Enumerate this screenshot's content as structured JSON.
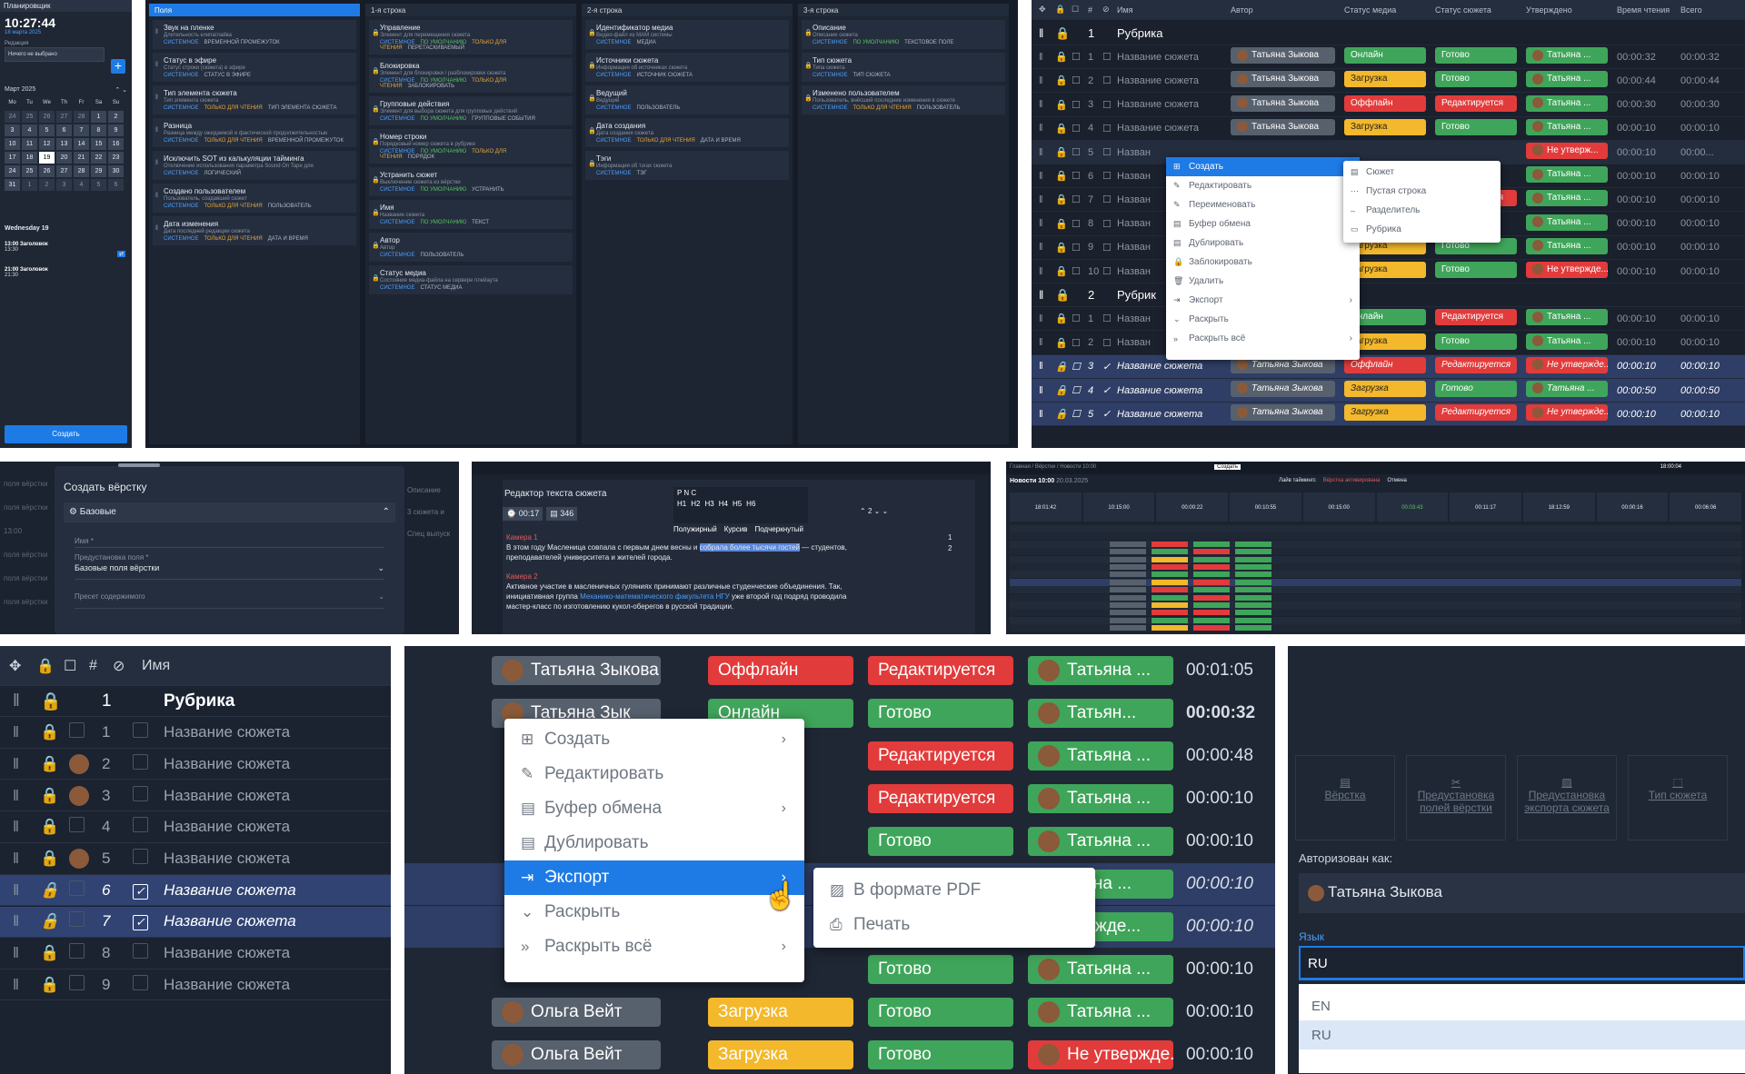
{
  "planner": {
    "title": "Планировщик",
    "time": "10:27:44",
    "date": "18 марта 2025",
    "edition_label": "Редакция",
    "edition_value": "Ничего не выбрано",
    "month": "Март 2025",
    "weekdays": [
      "Mo",
      "Tu",
      "We",
      "Th",
      "Fr",
      "Sa",
      "Su"
    ],
    "days": [
      "24",
      "25",
      "26",
      "27",
      "28",
      "1",
      "2",
      "3",
      "4",
      "5",
      "6",
      "7",
      "8",
      "9",
      "10",
      "11",
      "12",
      "13",
      "14",
      "15",
      "16",
      "17",
      "18",
      "19",
      "20",
      "21",
      "22",
      "23",
      "24",
      "25",
      "26",
      "27",
      "28",
      "29",
      "30",
      "31",
      "1",
      "2",
      "3",
      "4",
      "5",
      "6"
    ],
    "day_header": "Wednesday 19",
    "events": [
      {
        "time": "13:00",
        "title": "Заголовок",
        "sub": "13:30"
      },
      {
        "time": "21:00",
        "title": "Заголовок",
        "sub": "21:30"
      }
    ],
    "create": "Создать"
  },
  "fields": {
    "columns": [
      {
        "title": "Поля",
        "cards": [
          {
            "t": "Звук на пленке",
            "d": "Длительность клипа/лайва",
            "b": [
              "СИСТЕМНОЕ",
              "ВРЕМЕННОЙ ПРОМЕЖУТОК"
            ]
          },
          {
            "t": "Статус в эфире",
            "d": "Статус строки (сюжета) в эфире",
            "b": [
              "СИСТЕМНОЕ",
              "СТАТУС В ЭФИРЕ"
            ]
          },
          {
            "t": "Тип элемента сюжета",
            "d": "Тип элемента сюжета",
            "b": [
              "СИСТЕМНОЕ",
              "ТОЛЬКО ДЛЯ ЧТЕНИЯ",
              "ТИП ЭЛЕМЕНТА СЮЖЕТА"
            ]
          },
          {
            "t": "Разница",
            "d": "Разница между ожидаемой и фактической продолжительностью",
            "b": [
              "СИСТЕМНОЕ",
              "ТОЛЬКО ДЛЯ ЧТЕНИЯ",
              "ВРЕМЕННОЙ ПРОМЕЖУТОК"
            ]
          },
          {
            "t": "Исключить SOT из калькуляции тайминга",
            "d": "Отключение использования параметра Sound On Tape для",
            "b": [
              "СИСТЕМНОЕ",
              "ЛОГИЧЕСКИЙ"
            ]
          },
          {
            "t": "Создано пользователем",
            "d": "Пользователь, создавший сюжет",
            "b": [
              "СИСТЕМНОЕ",
              "ТОЛЬКО ДЛЯ ЧТЕНИЯ",
              "ПОЛЬЗОВАТЕЛЬ"
            ]
          },
          {
            "t": "Дата изменения",
            "d": "Дата последней редакции сюжета",
            "b": [
              "СИСТЕМНОЕ",
              "ТОЛЬКО ДЛЯ ЧТЕНИЯ",
              "ДАТА И ВРЕМЯ"
            ]
          }
        ]
      },
      {
        "title": "1-я строка",
        "cards": [
          {
            "t": "Управление",
            "d": "Элемент для перемещения сюжета",
            "b": [
              "СИСТЕМНОЕ",
              "ПО УМОЛЧАНИЮ",
              "ТОЛЬКО ДЛЯ ЧТЕНИЯ",
              "ПЕРЕТАСКИВАЕМЫЙ"
            ]
          },
          {
            "t": "Блокировка",
            "d": "Элемент для блокировки / разблокировки сюжета",
            "b": [
              "СИСТЕМНОЕ",
              "ПО УМОЛЧАНИЮ",
              "ТОЛЬКО ДЛЯ ЧТЕНИЯ",
              "ЗАБЛОКИРОВАТЬ"
            ]
          },
          {
            "t": "Групповые действия",
            "d": "Элемент для выбора сюжета для групповых действий",
            "b": [
              "СИСТЕМНОЕ",
              "ПО УМОЛЧАНИЮ",
              "ГРУППОВЫЕ СОБЫТИЯ"
            ]
          },
          {
            "t": "Номер строки",
            "d": "Порядковый номер сюжета в рубрике",
            "b": [
              "СИСТЕМНОЕ",
              "ПО УМОЛЧАНИЮ",
              "ТОЛЬКО ДЛЯ ЧТЕНИЯ",
              "ПОРЯДОК"
            ]
          },
          {
            "t": "Устранить сюжет",
            "d": "Выключение сюжета из вёрстки",
            "b": [
              "СИСТЕМНОЕ",
              "ПО УМОЛЧАНИЮ",
              "УСТРАНИТЬ"
            ]
          },
          {
            "t": "Имя",
            "d": "Название сюжета",
            "b": [
              "СИСТЕМНОЕ",
              "ПО УМОЛЧАНИЮ",
              "ТЕКСТ"
            ]
          },
          {
            "t": "Автор",
            "d": "Автор",
            "b": [
              "СИСТЕМНОЕ",
              "ПОЛЬЗОВАТЕЛЬ"
            ]
          },
          {
            "t": "Статус медиа",
            "d": "Состояние медиа-файла на сервере плейаута",
            "b": [
              "СИСТЕМНОЕ",
              "СТАТУС МЕДИА"
            ]
          }
        ]
      },
      {
        "title": "2-я строка",
        "cards": [
          {
            "t": "Идентификатор медиа",
            "d": "Видео-файл из МАМ системы",
            "b": [
              "СИСТЕМНОЕ",
              "МЕДИА"
            ]
          },
          {
            "t": "Источники сюжета",
            "d": "Информация об источниках сюжета",
            "b": [
              "СИСТЕМНОЕ",
              "ИСТОЧНИК СЮЖЕТА"
            ]
          },
          {
            "t": "Ведущий",
            "d": "Ведущий",
            "b": [
              "СИСТЕМНОЕ",
              "ПОЛЬЗОВАТЕЛЬ"
            ]
          },
          {
            "t": "Дата создания",
            "d": "Дата создания сюжета",
            "b": [
              "СИСТЕМНОЕ",
              "ТОЛЬКО ДЛЯ ЧТЕНИЯ",
              "ДАТА И ВРЕМЯ"
            ]
          },
          {
            "t": "Тэги",
            "d": "Информация об тэгах сюжета",
            "b": [
              "СИСТЕМНОЕ",
              "ТЭГ"
            ]
          }
        ]
      },
      {
        "title": "3-я строка",
        "cards": [
          {
            "t": "Описание",
            "d": "Описание сюжета",
            "b": [
              "СИСТЕМНОЕ",
              "ПО УМОЛЧАНИЮ",
              "ТЕКСТОВОЕ ПОЛЕ"
            ]
          },
          {
            "t": "Тип сюжета",
            "d": "Типа сюжета",
            "b": [
              "СИСТЕМНОЕ",
              "ТИП СЮЖЕТА"
            ]
          },
          {
            "t": "Изменено пользователем",
            "d": "Пользователь, внёсший последние изменения в сюжете",
            "b": [
              "СИСТЕМНОЕ",
              "ТОЛЬКО ДЛЯ ЧТЕНИЯ",
              "ПОЛЬЗОВАТЕЛЬ"
            ]
          }
        ]
      }
    ]
  },
  "rundown": {
    "headers": [
      "#",
      "Имя",
      "Автор",
      "Статус медиа",
      "Статус сюжета",
      "Утверждено",
      "Время чтения",
      "Всего"
    ],
    "rows": [
      {
        "n": "1",
        "name": "Рубрика",
        "type": "rubric"
      },
      {
        "n": "1",
        "name": "Название сюжета",
        "author": "Татьяна Зыкова",
        "media": "Онлайн",
        "mc": "g",
        "status": "Готово",
        "sc": "g",
        "appr": "Татьяна ...",
        "ac": "g",
        "time": "00:00:32",
        "total": "00:00:32"
      },
      {
        "n": "2",
        "name": "Название сюжета",
        "author": "Татьяна Зыкова",
        "media": "Загрузка",
        "mc": "y",
        "status": "Готово",
        "sc": "g",
        "appr": "Татьяна ...",
        "ac": "g",
        "time": "00:00:44",
        "total": "00:00:44"
      },
      {
        "n": "3",
        "name": "Название сюжета",
        "author": "Татьяна Зыкова",
        "media": "Оффлайн",
        "mc": "r",
        "status": "Редактируется",
        "sc": "r",
        "appr": "Татьяна ...",
        "ac": "g",
        "time": "00:00:30",
        "total": "00:00:30"
      },
      {
        "n": "4",
        "name": "Название сюжета",
        "author": "Татьяна Зыкова",
        "media": "Загрузка",
        "mc": "y",
        "status": "Готово",
        "sc": "g",
        "appr": "Татьяна ...",
        "ac": "g",
        "time": "00:00:10",
        "total": "00:00:10"
      },
      {
        "n": "5",
        "name": "Назван",
        "appr": "Не утверж...",
        "ac": "r",
        "time": "00:00:10",
        "total": "00:00...",
        "type": "active"
      },
      {
        "n": "6",
        "name": "Назван",
        "appr": "Татьяна ...",
        "ac": "g",
        "time": "00:00:10",
        "total": "00:00:10"
      },
      {
        "n": "7",
        "name": "Назван",
        "status": "Редактируется",
        "sc": "r",
        "appr": "Татьяна ...",
        "ac": "g",
        "time": "00:00:10",
        "total": "00:00:10"
      },
      {
        "n": "8",
        "name": "Назван",
        "appr": "Татьяна ...",
        "ac": "g",
        "time": "00:00:10",
        "total": "00:00:10"
      },
      {
        "n": "9",
        "name": "Назван",
        "media": "Загрузка",
        "mc": "y",
        "status": "Готово",
        "sc": "g",
        "appr": "Татьяна ...",
        "ac": "g",
        "time": "00:00:10",
        "total": "00:00:10"
      },
      {
        "n": "10",
        "name": "Назван",
        "media": "Загрузка",
        "mc": "y",
        "status": "Готово",
        "sc": "g",
        "appr": "Не утвержде...",
        "ac": "r",
        "time": "00:00:10",
        "total": "00:00:10"
      },
      {
        "n": "2",
        "name": "Рубрик",
        "type": "rubric"
      },
      {
        "n": "1",
        "name": "Назван",
        "media": "Онлайн",
        "mc": "g",
        "status": "Редактируется",
        "sc": "r",
        "appr": "Татьяна ...",
        "ac": "g",
        "time": "00:00:10",
        "total": "00:00:10"
      },
      {
        "n": "2",
        "name": "Назван",
        "media": "Загрузка",
        "mc": "y",
        "status": "Готово",
        "sc": "g",
        "appr": "Татьяна ...",
        "ac": "g",
        "time": "00:00:10",
        "total": "00:00:10"
      },
      {
        "n": "3",
        "name": "Название сюжета",
        "author": "Татьяна Зыкова",
        "media": "Оффлайн",
        "mc": "r",
        "status": "Редактируется",
        "sc": "r",
        "appr": "Не утвержде...",
        "ac": "r",
        "time": "00:00:10",
        "total": "00:00:10",
        "type": "sel"
      },
      {
        "n": "4",
        "name": "Название сюжета",
        "author": "Татьяна Зыкова",
        "media": "Загрузка",
        "mc": "y",
        "status": "Готово",
        "sc": "g",
        "appr": "Татьяна ...",
        "ac": "g",
        "time": "00:00:50",
        "total": "00:00:50",
        "type": "sel"
      },
      {
        "n": "5",
        "name": "Название сюжета",
        "author": "Татьяна Зыкова",
        "media": "Загрузка",
        "mc": "y",
        "status": "Редактируется",
        "sc": "r",
        "appr": "Не утвержде...",
        "ac": "r",
        "time": "00:00:10",
        "total": "00:00:10",
        "type": "sel"
      }
    ],
    "menu": [
      "Создать",
      "Редактировать",
      "Переименовать",
      "Буфер обмена",
      "Дублировать",
      "Заблокировать",
      "Удалить",
      "Экспорт",
      "Раскрыть",
      "Раскрыть всё"
    ],
    "submenu": [
      "Сюжет",
      "Пустая строка",
      "Разделитель",
      "Рубрика"
    ]
  },
  "layout_dialog": {
    "title": "Создать вёрстку",
    "section": "Базовые",
    "name_label": "Имя *",
    "preset_label": "Предустановка поля *",
    "preset_value": "Базовые поля вёрстки",
    "content_label": "Пресет содержимого",
    "side": [
      "Описание",
      "3 сюжета и",
      "Спец выпуск"
    ]
  },
  "text_editor": {
    "title": "Редактор текста сюжета",
    "time": "00:17",
    "words": "346",
    "heads": [
      "H1",
      "H2",
      "H3",
      "H4",
      "H5",
      "H6"
    ],
    "styles": [
      "Полужирный",
      "Курсив",
      "Подчеркнутый"
    ],
    "page": "2",
    "cam1": "Камера 1",
    "p1a": "В этом году Масленица совпала с первым днем весны и ",
    "p1h": "собрала более тысячи гостей",
    "p1b": " — студентов, преподавателей университета и жителей города.",
    "cam2": "Камера 2",
    "p2a": "Активное участие в масленичных гуляниях принимают различные студенческие объединения. Так, инициативная группа ",
    "p2l": "Механико-математического факультета НГУ",
    "p2b": " уже второй год подряд проводила мастер-класс по изготовлению кукол-оберегов в русской традиции."
  },
  "overview": {
    "crumb": "Главная / Вёрстки / Новости 10:00",
    "title": "Новости 10:00",
    "date": "20.03.2025",
    "create": "Создать",
    "live": "Лайв таймингс",
    "status": "Вёрстка активирована",
    "cancel": "Отмена",
    "clock": "18:00:04",
    "times": [
      "18:01:42",
      "10:15:00",
      "00:00:22",
      "00:10:55",
      "00:15:00",
      "00:03:43",
      "00:11:17",
      "18:12:59",
      "00:00:16",
      "00:06:06"
    ]
  },
  "big_table": {
    "headers": [
      "#",
      "Имя"
    ],
    "rows": [
      {
        "n": "1",
        "name": "Рубрика",
        "type": "rubric"
      },
      {
        "n": "1",
        "name": "Название сюжета"
      },
      {
        "n": "2",
        "name": "Название сюжета",
        "ava": true
      },
      {
        "n": "3",
        "name": "Название сюжета",
        "ava": true
      },
      {
        "n": "4",
        "name": "Название сюжета"
      },
      {
        "n": "5",
        "name": "Название сюжета",
        "ava": true
      },
      {
        "n": "6",
        "name": "Название сюжета",
        "type": "sel"
      },
      {
        "n": "7",
        "name": "Название сюжета",
        "type": "sel"
      },
      {
        "n": "8",
        "name": "Название сюжета"
      },
      {
        "n": "9",
        "name": "Название сюжета"
      }
    ]
  },
  "big_menu": {
    "rows": [
      {
        "author": "Татьяна Зыкова",
        "media": "Оффлайн",
        "mc": "r",
        "status": "Редактируется",
        "sc": "r",
        "appr": "Татьяна ...",
        "time": "00:01:05"
      },
      {
        "author": "Татьяна Зык",
        "media": "Онлайн",
        "mc": "g",
        "status": "Готово",
        "sc": "g",
        "appr": "Татьян...",
        "time": "00:00:32",
        "bold": true
      },
      {
        "status": "Редактируется",
        "sc": "r",
        "appr": "Татьяна ...",
        "time": "00:00:48"
      },
      {
        "status": "Редактируется",
        "sc": "r",
        "appr": "Татьяна ...",
        "time": "00:00:10"
      },
      {
        "status": "Готово",
        "sc": "g",
        "appr": "Татьяна ...",
        "time": "00:00:10"
      },
      {
        "appr": "тьяна ...",
        "time": "00:00:10",
        "it": true
      },
      {
        "appr": "вержде...",
        "time": "00:00:10",
        "it": true
      },
      {
        "status": "Готово",
        "sc": "g",
        "appr": "Татьяна ...",
        "time": "00:00:10"
      },
      {
        "author": "Ольга Вейт",
        "media": "Загрузка",
        "mc": "y",
        "status": "Готово",
        "sc": "g",
        "appr": "Татьяна ...",
        "time": "00:00:10"
      },
      {
        "author": "Ольга Вейт",
        "media": "Загрузка",
        "mc": "y",
        "status": "Готово",
        "sc": "g",
        "appr": "Не утвержде...",
        "ac": "r",
        "time": "00:00:10"
      }
    ],
    "menu": [
      "Создать",
      "Редактировать",
      "Буфер обмена",
      "Дублировать",
      "Экспорт",
      "Раскрыть",
      "Раскрыть всё"
    ],
    "submenu": [
      "В формате PDF",
      "Печать"
    ]
  },
  "settings": {
    "tiles": [
      "Вёрстка",
      "Предустановка полей вёрстки",
      "Предустановка экспорта сюжета",
      "Тип сюжета"
    ],
    "auth_label": "Авторизован как:",
    "user": "Татьяна Зыкова",
    "lang_label": "Язык",
    "lang_value": "RU",
    "options": [
      "EN",
      "RU"
    ]
  }
}
